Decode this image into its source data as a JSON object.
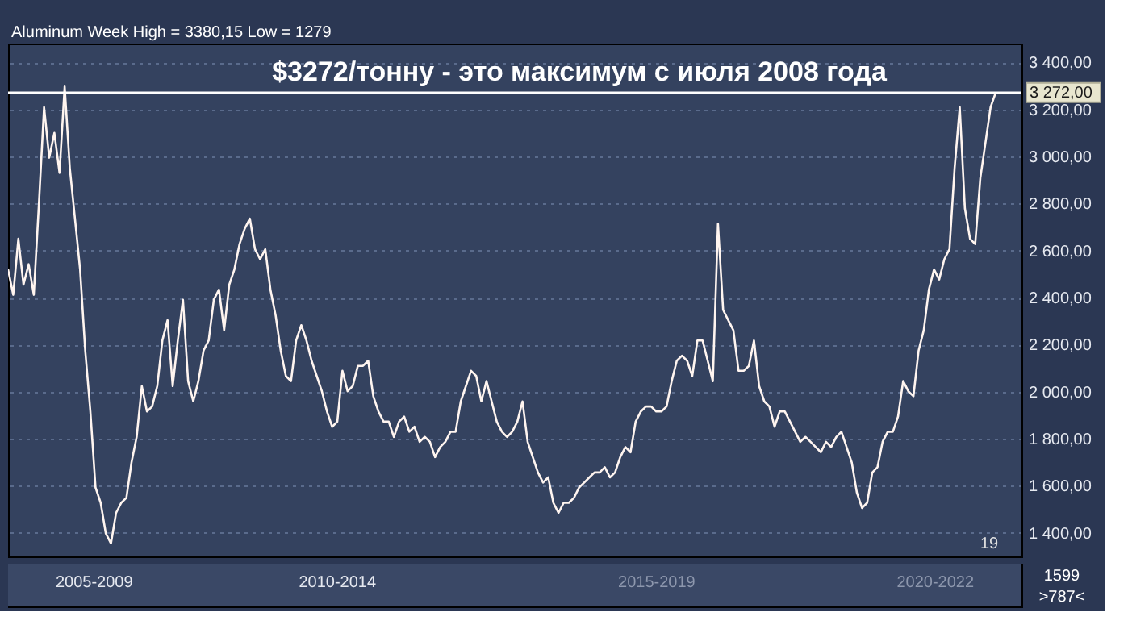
{
  "chart_data": {
    "type": "line",
    "title": "$3272/тонну - это максимум с июля 2008 года",
    "annotations": [
      "Aluminum Week High = 3380,15 Low = 1279",
      "19",
      "1599",
      ">787<",
      "2005-2009",
      "2010-2014",
      "2015-2019",
      "2020-2022"
    ],
    "categories": [
      null,
      null,
      null,
      null,
      null,
      null,
      null,
      null,
      null,
      null,
      null,
      null,
      null,
      null,
      null,
      null,
      null,
      null,
      null,
      null,
      null,
      null,
      null,
      null,
      null,
      null,
      null,
      null,
      null,
      null,
      null,
      null,
      null,
      null,
      null,
      null,
      null,
      null,
      null,
      null,
      null,
      null,
      null,
      null,
      null,
      null,
      null,
      null,
      null,
      null,
      null,
      null,
      null,
      null,
      null,
      null,
      null,
      null,
      null,
      null,
      null,
      null,
      null,
      null,
      null,
      null,
      null,
      null,
      null,
      null,
      null,
      null,
      null,
      null,
      null,
      null,
      null,
      null,
      null,
      null,
      null,
      null,
      null,
      null,
      null,
      null,
      null,
      null,
      null,
      null,
      null,
      null,
      null,
      null,
      null,
      null,
      null,
      null,
      null,
      null,
      null,
      null,
      null,
      null,
      null,
      null,
      null,
      null,
      null,
      null,
      null,
      null,
      null,
      null,
      null,
      null,
      null,
      null,
      null,
      null,
      null,
      null,
      null,
      null,
      null,
      null,
      null,
      null,
      null,
      null,
      null,
      null,
      null,
      null,
      null,
      null,
      null,
      null,
      null,
      null,
      null,
      null,
      null,
      null,
      null,
      null,
      null,
      null,
      null,
      null,
      null,
      null,
      null,
      null,
      null,
      null,
      null,
      null,
      null,
      null,
      null,
      null,
      null,
      null,
      null,
      null,
      null,
      null,
      null,
      null,
      null,
      null,
      null,
      null,
      null,
      null,
      null,
      null,
      null,
      null,
      null,
      null,
      null,
      null,
      null,
      null,
      null,
      null,
      null,
      null,
      null,
      null,
      null
    ],
    "series": [
      {
        "color": "#fff5f0",
        "values": [
          2520,
          2412,
          2650,
          2455,
          2542,
          2412,
          2800,
          3210,
          2995,
          3100,
          2930,
          3297,
          2951,
          2736,
          2520,
          2175,
          1916,
          1593,
          1528,
          1398,
          1355,
          1485,
          1528,
          1549,
          1700,
          1808,
          2024,
          1916,
          1937,
          2024,
          2218,
          2304,
          2024,
          2218,
          2391,
          2045,
          1959,
          2045,
          2175,
          2218,
          2391,
          2434,
          2261,
          2455,
          2520,
          2628,
          2693,
          2736,
          2606,
          2563,
          2606,
          2434,
          2326,
          2175,
          2067,
          2045,
          2218,
          2283,
          2218,
          2132,
          2067,
          2002,
          1916,
          1851,
          1873,
          2089,
          2002,
          2024,
          2110,
          2110,
          2132,
          1981,
          1916,
          1873,
          1873,
          1808,
          1873,
          1894,
          1830,
          1851,
          1787,
          1808,
          1787,
          1722,
          1765,
          1787,
          1830,
          1830,
          1959,
          2024,
          2089,
          2067,
          1959,
          2045,
          1959,
          1873,
          1830,
          1808,
          1830,
          1873,
          1959,
          1787,
          1722,
          1657,
          1614,
          1636,
          1528,
          1485,
          1528,
          1528,
          1549,
          1593,
          1614,
          1636,
          1657,
          1657,
          1679,
          1636,
          1657,
          1722,
          1765,
          1743,
          1873,
          1916,
          1937,
          1937,
          1916,
          1916,
          1937,
          2045,
          2132,
          2153,
          2132,
          2067,
          2218,
          2218,
          2132,
          2045,
          2714,
          2348,
          2304,
          2261,
          2089,
          2089,
          2110,
          2218,
          2024,
          1959,
          1937,
          1851,
          1916,
          1916,
          1873,
          1830,
          1787,
          1808,
          1787,
          1765,
          1743,
          1787,
          1765,
          1808,
          1830,
          1765,
          1700,
          1571,
          1506,
          1528,
          1657,
          1679,
          1787,
          1830,
          1830,
          1894,
          2045,
          2002,
          1981,
          2175,
          2261,
          2434,
          2520,
          2477,
          2563,
          2606,
          2951,
          3210,
          2779,
          2650,
          2628,
          2908,
          3059,
          3210,
          3272
        ]
      }
    ],
    "ylim": [
      1300,
      3480
    ],
    "yticks": [
      {
        "value": 1400,
        "label": "1 400,00"
      },
      {
        "value": 1600,
        "label": "1 600,00"
      },
      {
        "value": 1800,
        "label": "1 800,00"
      },
      {
        "value": 2000,
        "label": "2 000,00"
      },
      {
        "value": 2200,
        "label": "2 200,00"
      },
      {
        "value": 2400,
        "label": "2 400,00"
      },
      {
        "value": 2600,
        "label": "2 600,00"
      },
      {
        "value": 2800,
        "label": "2 800,00"
      },
      {
        "value": 3000,
        "label": "3 000,00"
      },
      {
        "value": 3200,
        "label": "3 200,00"
      },
      {
        "value": 3400,
        "label": "3 400,00"
      }
    ],
    "ref_lines": [
      {
        "axis": "y",
        "value": 3272,
        "label": "3 272,00",
        "color": "#ffffff"
      }
    ],
    "grid": "y",
    "tick_labels": "y",
    "marker": "none",
    "line_style": "solid"
  }
}
